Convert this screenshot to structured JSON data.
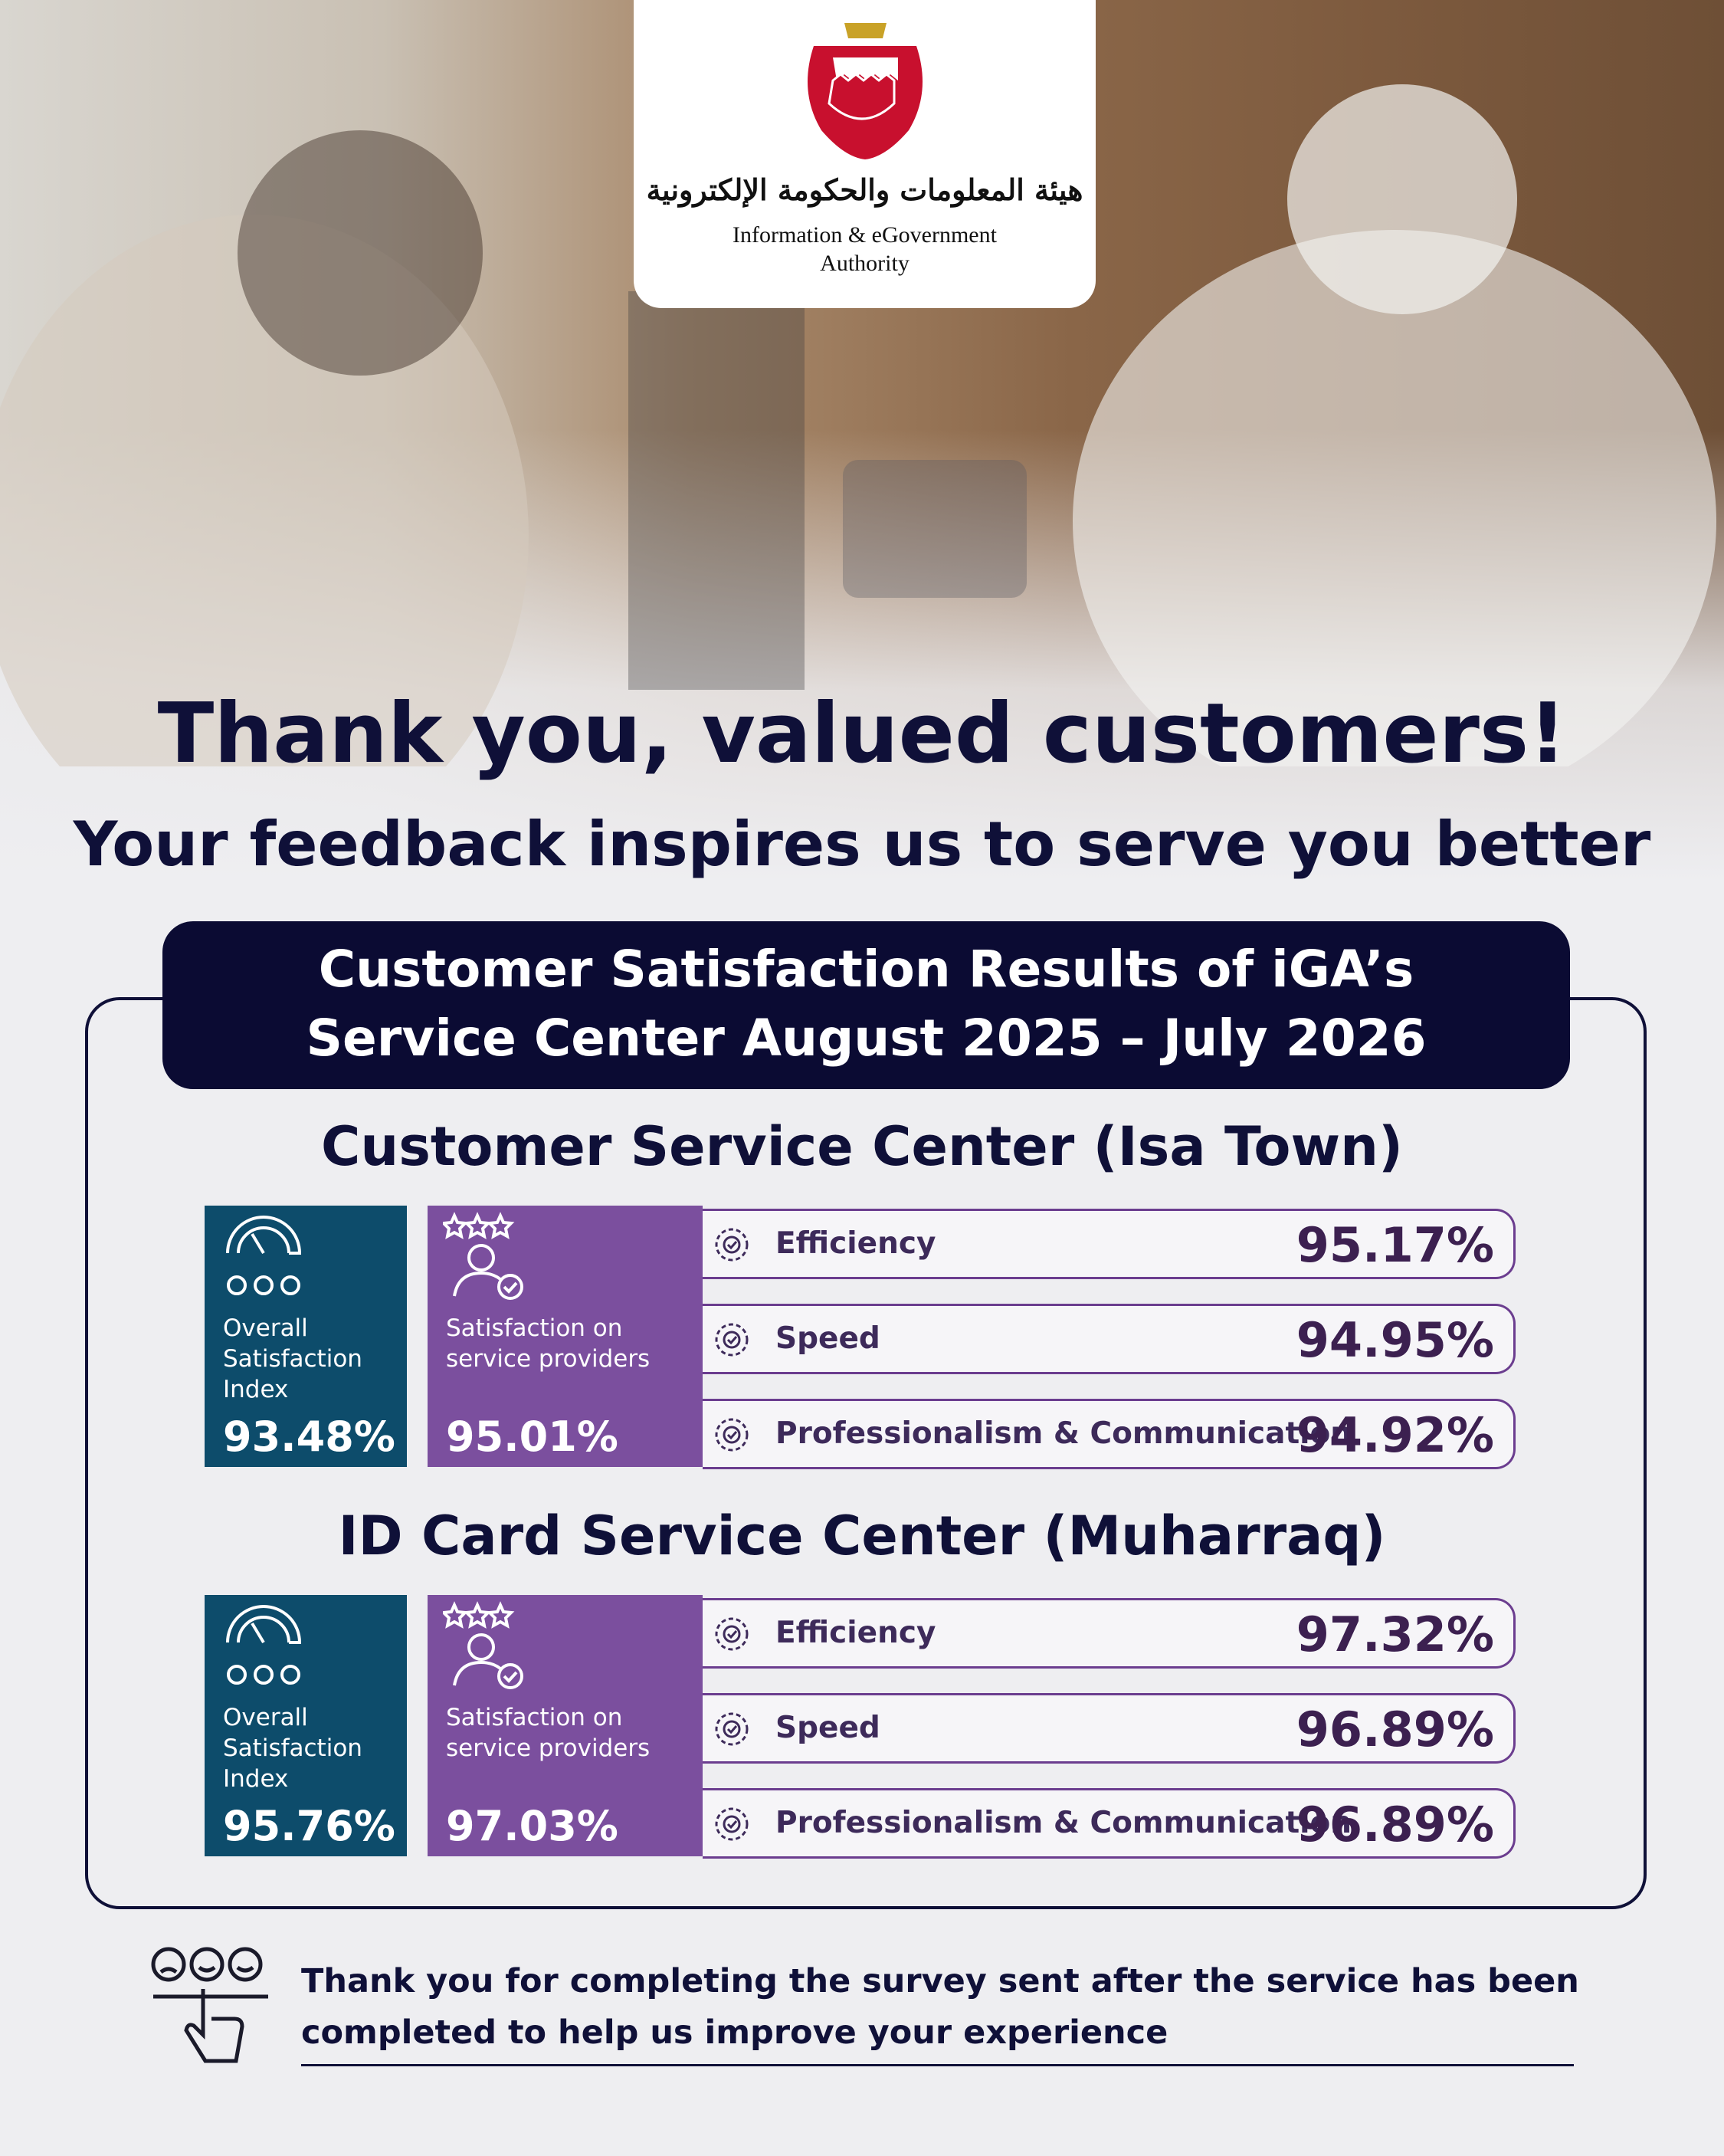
{
  "header": {
    "logo_arabic": "هيئة المعلومات والحكومة الإلكترونية",
    "logo_english_line1": "Information & eGovernment",
    "logo_english_line2": "Authority"
  },
  "headline": "Thank you, valued customers!",
  "subheadline": "Your feedback inspires us to serve you better",
  "panel_title": [
    "Customer Satisfaction Results of iGA’s",
    "Service Center August 2025 – July 2026"
  ],
  "sections": [
    {
      "name": "Customer Service Center (Isa Town)",
      "overall_label": "Overall Satisfaction Index",
      "overall_value": "93.48%",
      "providers_label": "Satisfaction on service providers",
      "providers_value": "95.01%",
      "metrics": [
        {
          "name": "Efficiency",
          "value": "95.17%"
        },
        {
          "name": "Speed",
          "value": "94.95%"
        },
        {
          "name": "Professionalism & Communication",
          "value": "94.92%"
        }
      ]
    },
    {
      "name": "ID Card Service Center (Muharraq)",
      "overall_label": "Overall Satisfaction Index",
      "overall_value": "95.76%",
      "providers_label": "Satisfaction on service providers",
      "providers_value": "97.03%",
      "metrics": [
        {
          "name": "Efficiency",
          "value": "97.32%"
        },
        {
          "name": "Speed",
          "value": "96.89%"
        },
        {
          "name": "Professionalism & Communication",
          "value": "96.89%"
        }
      ]
    }
  ],
  "footer": [
    "Thank you for completing the survey sent after the service has been",
    "completed to help us improve your experience"
  ]
}
